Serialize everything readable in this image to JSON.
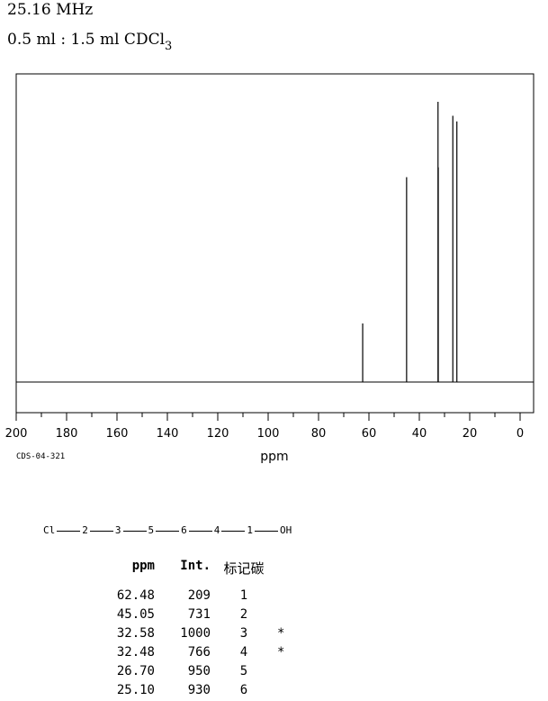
{
  "header": {
    "frequency": "25.16 MHz",
    "solvent_prefix": "0.5 ml : 1.5 ml CDCl",
    "solvent_subscript": "3"
  },
  "spectrum_code": "CDS-04-321",
  "structure": {
    "atoms": [
      "Cl",
      "2",
      "3",
      "5",
      "6",
      "4",
      "1",
      "OH"
    ]
  },
  "peak_table": {
    "headers": {
      "ppm": "ppm",
      "int": "Int.",
      "carbon": "标记碳"
    },
    "rows": [
      {
        "ppm": "62.48",
        "int": "209",
        "carbon": "1",
        "mark": ""
      },
      {
        "ppm": "45.05",
        "int": "731",
        "carbon": "2",
        "mark": ""
      },
      {
        "ppm": "32.58",
        "int": "1000",
        "carbon": "3",
        "mark": "*"
      },
      {
        "ppm": "32.48",
        "int": "766",
        "carbon": "4",
        "mark": "*"
      },
      {
        "ppm": "26.70",
        "int": "950",
        "carbon": "5",
        "mark": ""
      },
      {
        "ppm": "25.10",
        "int": "930",
        "carbon": "6",
        "mark": ""
      }
    ]
  },
  "chart_data": {
    "type": "line",
    "xlabel": "ppm",
    "xlim": [
      200,
      0
    ],
    "ylim": [
      0,
      1000
    ],
    "x_ticks": [
      "200",
      "180",
      "160",
      "140",
      "120",
      "100",
      "80",
      "60",
      "40",
      "20",
      "0"
    ],
    "grid": false,
    "peaks": [
      {
        "x": 62.48,
        "y": 209
      },
      {
        "x": 45.05,
        "y": 731
      },
      {
        "x": 32.58,
        "y": 1000
      },
      {
        "x": 32.48,
        "y": 766
      },
      {
        "x": 26.7,
        "y": 950
      },
      {
        "x": 25.1,
        "y": 930
      }
    ]
  }
}
